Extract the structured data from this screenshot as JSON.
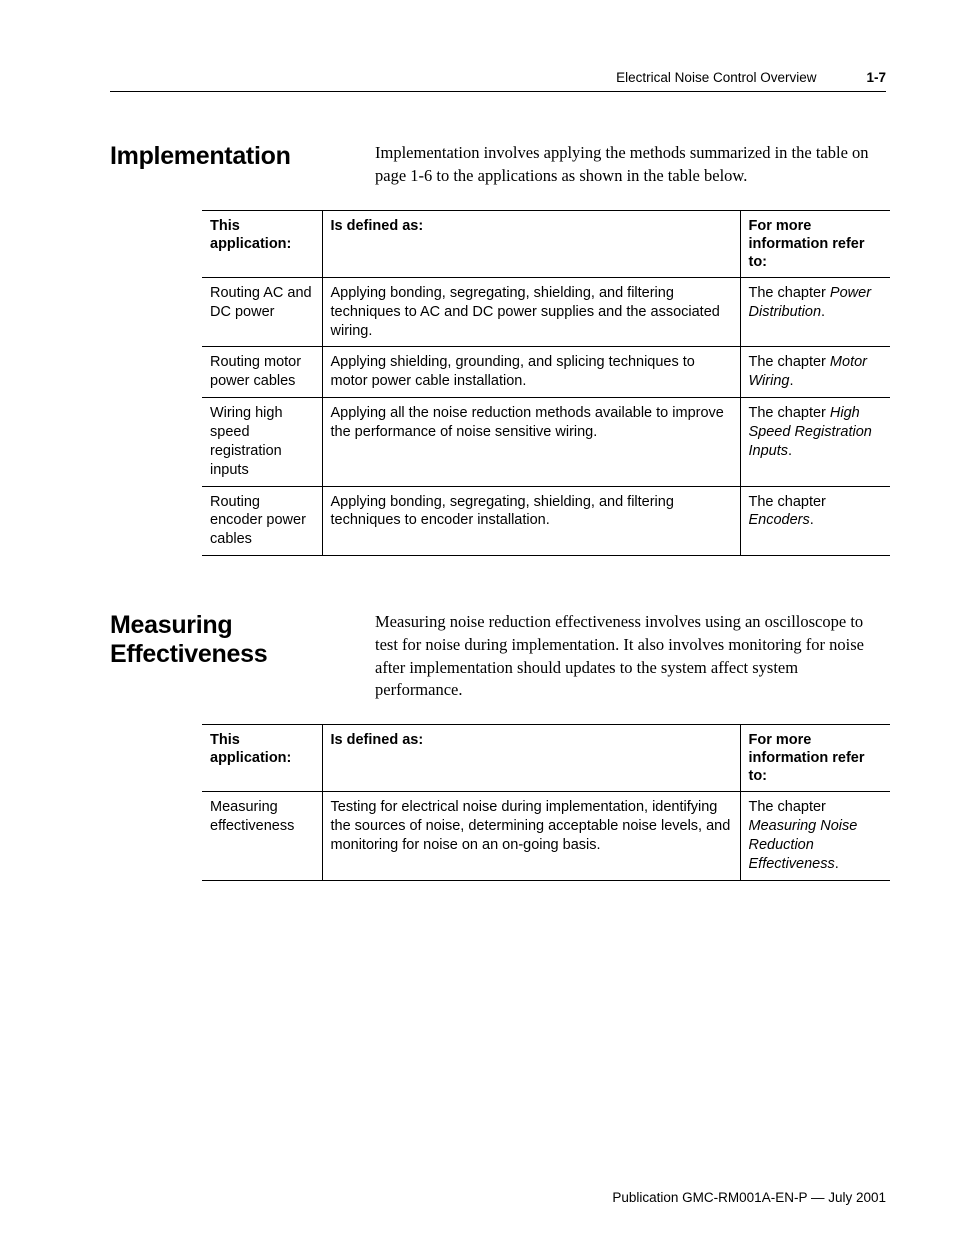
{
  "header": {
    "title": "Electrical Noise Control Overview",
    "page_number": "1-7"
  },
  "sections": [
    {
      "heading": "Implementation",
      "intro": "Implementation involves applying the methods summarized in the table on page 1-6 to the applications as shown in the table below.",
      "table": {
        "columns": [
          "This application:",
          "Is defined as:",
          "For more information refer to:"
        ],
        "rows": [
          {
            "app": "Routing AC and DC power",
            "def": "Applying bonding, segregating, shielding, and filtering techniques to AC and DC power supplies and the associated wiring.",
            "ref_prefix": "The chapter ",
            "ref_italic": "Power Distribution",
            "ref_suffix": "."
          },
          {
            "app": "Routing motor power cables",
            "def": "Applying shielding, grounding, and splicing techniques to motor power cable installation.",
            "ref_prefix": "The chapter ",
            "ref_italic": "Motor Wiring",
            "ref_suffix": "."
          },
          {
            "app": "Wiring high speed registration inputs",
            "def": "Applying all the noise reduction methods available to improve the performance of noise sensitive wiring.",
            "ref_prefix": "The chapter ",
            "ref_italic": "High Speed Registration Inputs",
            "ref_suffix": "."
          },
          {
            "app": "Routing encoder power cables",
            "def": "Applying bonding, segregating, shielding, and filtering techniques to encoder installation.",
            "ref_prefix": "The chapter ",
            "ref_italic": "Encoders",
            "ref_suffix": "."
          }
        ]
      }
    },
    {
      "heading": "Measuring Effectiveness",
      "intro": "Measuring noise reduction effectiveness involves using an oscilloscope to test for noise during implementation. It also involves monitoring for noise after implementation should updates to the system affect system performance.",
      "table": {
        "columns": [
          "This application:",
          "Is defined as:",
          "For more information refer to:"
        ],
        "rows": [
          {
            "app": "Measuring effectiveness",
            "def": "Testing for electrical noise during implementation, identifying the sources of noise, determining acceptable noise levels, and monitoring for noise on an on-going basis.",
            "ref_prefix": "The chapter ",
            "ref_italic": "Measuring Noise Reduction Effectiveness",
            "ref_suffix": "."
          }
        ]
      }
    }
  ],
  "footer": "Publication GMC-RM001A-EN-P — July 2001",
  "style": {
    "page_bg": "#ffffff",
    "text_color": "#000000",
    "rule_color": "#000000",
    "heading_fontsize_pt": 19,
    "body_fontsize_pt": 12.5,
    "table_fontsize_pt": 11,
    "footer_fontsize_pt": 10
  }
}
